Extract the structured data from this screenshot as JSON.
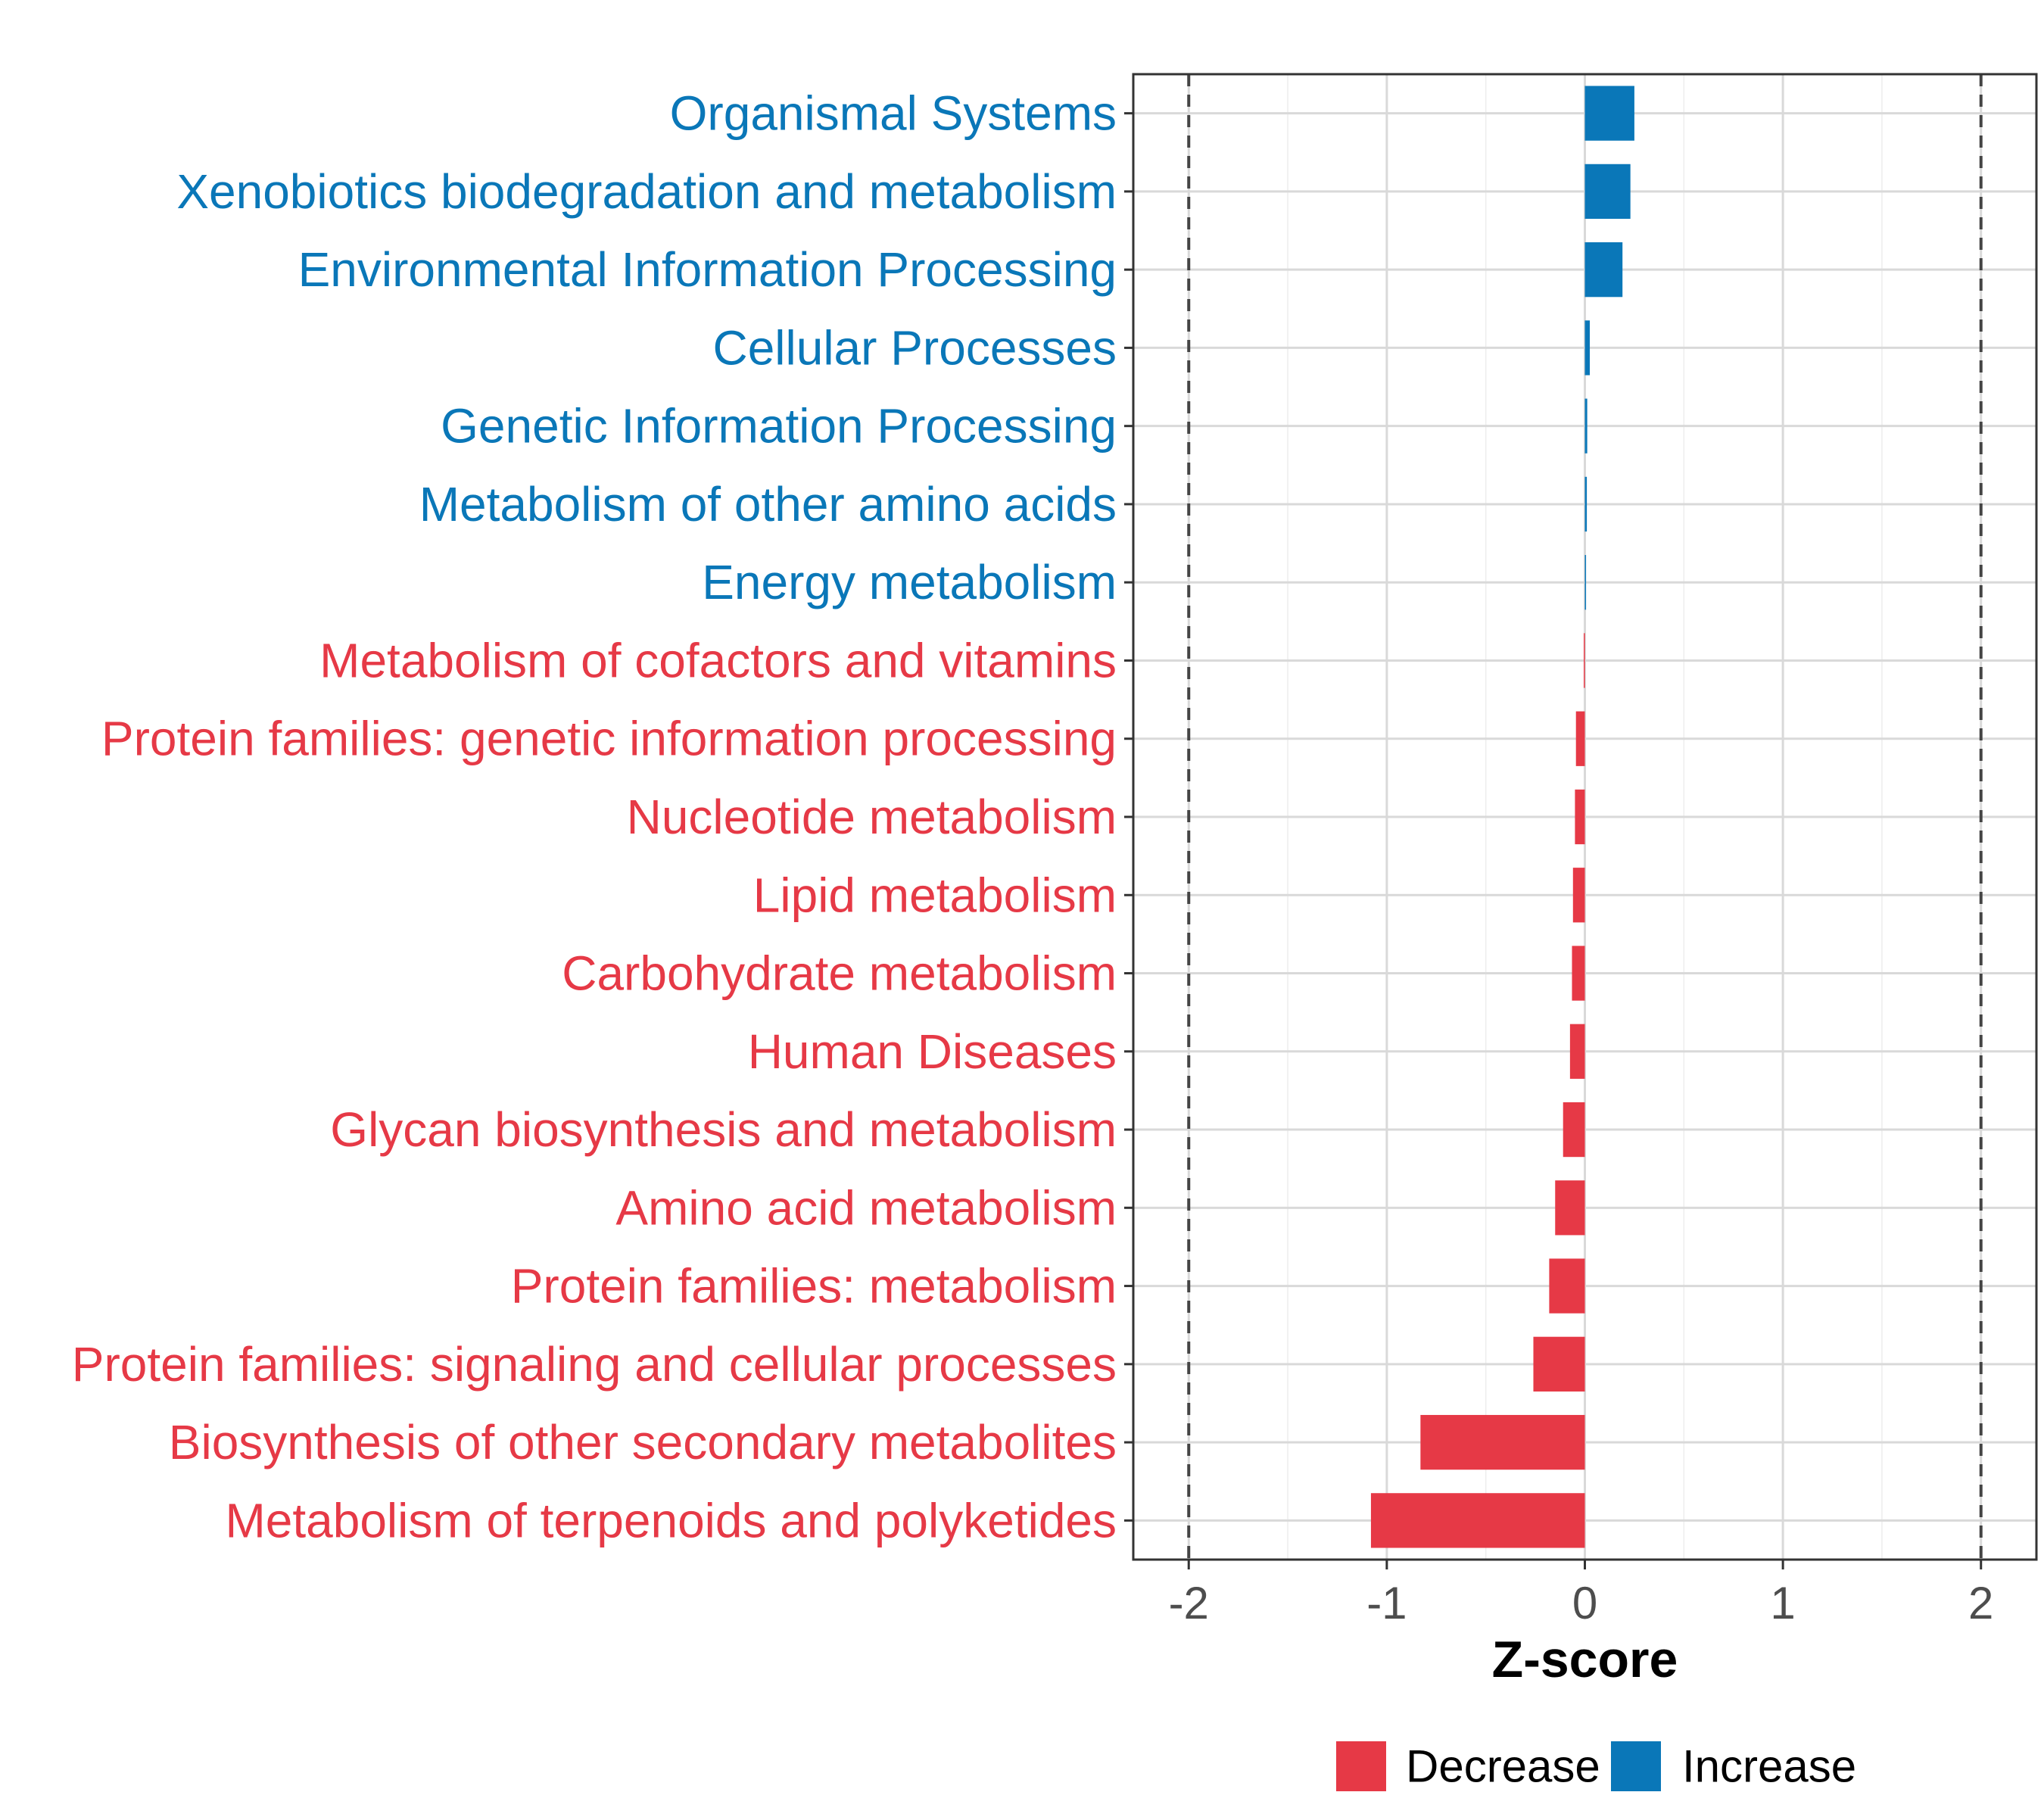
{
  "chart_data": {
    "type": "bar",
    "orientation": "horizontal",
    "title": "",
    "xlabel": "Z-score",
    "ylabel": "",
    "xlim": [
      -2.28,
      2.28
    ],
    "xticks": [
      -2,
      -1,
      0,
      1,
      2
    ],
    "xtick_labels": [
      "-2",
      "-1",
      "0",
      "1",
      "2"
    ],
    "threshold_lines": [
      -2,
      2
    ],
    "grid": true,
    "legend_position": "bottom",
    "colors": {
      "Decrease": "#e63946",
      "Increase": "#0a77b8"
    },
    "categories": [
      "Organismal Systems",
      "Xenobiotics biodegradation and metabolism",
      "Environmental Information Processing",
      "Cellular Processes",
      "Genetic Information Processing",
      "Metabolism of other amino acids",
      "Energy metabolism",
      "Metabolism of cofactors and vitamins",
      "Protein families: genetic information processing",
      "Nucleotide metabolism",
      "Lipid metabolism",
      "Carbohydrate metabolism",
      "Human Diseases",
      "Glycan biosynthesis and metabolism",
      "Amino acid metabolism",
      "Protein families: metabolism",
      "Protein families: signaling and cellular processes",
      "Biosynthesis of other secondary metabolites",
      "Metabolism of terpenoids and polyketides"
    ],
    "values": [
      0.25,
      0.23,
      0.19,
      0.025,
      0.012,
      0.01,
      0.006,
      -0.005,
      -0.045,
      -0.05,
      -0.06,
      -0.065,
      -0.075,
      -0.11,
      -0.15,
      -0.18,
      -0.26,
      -0.83,
      -1.08
    ],
    "groups": [
      "Increase",
      "Increase",
      "Increase",
      "Increase",
      "Increase",
      "Increase",
      "Increase",
      "Decrease",
      "Decrease",
      "Decrease",
      "Decrease",
      "Decrease",
      "Decrease",
      "Decrease",
      "Decrease",
      "Decrease",
      "Decrease",
      "Decrease",
      "Decrease"
    ],
    "legend": [
      "Decrease",
      "Increase"
    ]
  }
}
